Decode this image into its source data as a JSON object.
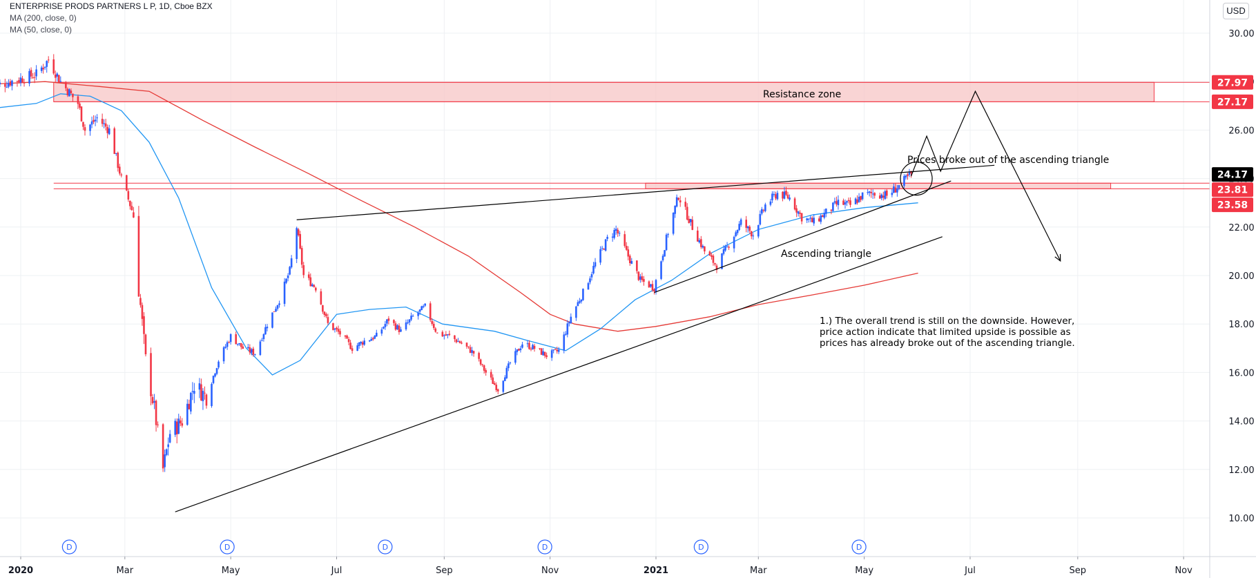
{
  "header": {
    "title": "ENTERPRISE PRODS PARTNERS L P, 1D, Cboe BZX",
    "ma200": "MA (200, close, 0)",
    "ma50": "MA (50, close, 0)"
  },
  "currency_button": "USD",
  "annotations": {
    "resistance_zone": "Resistance zone",
    "breakout": "Prices broke out of the ascending triangle",
    "ascending_triangle": "Ascending triangle",
    "note_lines": [
      "1.) The overall trend is still on the downside. However,",
      "price action indicate that limited upside is possible as",
      "prices has already broke out of the ascending triangle."
    ]
  },
  "price_badges": [
    {
      "label": "27.97",
      "value": 27.97,
      "color": "#f23645"
    },
    {
      "label": "27.17",
      "value": 27.17,
      "color": "#f23645"
    },
    {
      "label": "24.17",
      "value": 24.17,
      "color": "#000000"
    },
    {
      "label": "23.81",
      "value": 23.81,
      "color": "#f23645"
    },
    {
      "label": "23.58",
      "value": 23.58,
      "color": "#f23645"
    }
  ],
  "dividend_markers": [
    {
      "label": "D",
      "date": "2020-01-29"
    },
    {
      "label": "D",
      "date": "2020-04-29"
    },
    {
      "label": "D",
      "date": "2020-07-29"
    },
    {
      "label": "D",
      "date": "2020-10-29"
    },
    {
      "label": "D",
      "date": "2021-01-27"
    },
    {
      "label": "D",
      "date": "2021-04-28"
    }
  ],
  "colors": {
    "up": "#2962ff",
    "down": "#f23645",
    "ma200": "#e53935",
    "ma50": "#2196f3",
    "zone_fill": "#f7c5c5",
    "zone_border": "#f23645",
    "grid": "#eef0f3"
  },
  "chart_data": {
    "type": "candlestick",
    "symbol": "ENTERPRISE PRODS PARTNERS L P",
    "interval": "1D",
    "exchange": "Cboe BZX",
    "y_axis": {
      "ticks": [
        10,
        12,
        14,
        16,
        18,
        20,
        22,
        24,
        26,
        28,
        30
      ],
      "tick_labels": [
        "10.00",
        "12.00",
        "14.00",
        "16.00",
        "18.00",
        "20.00",
        "22.00",
        "24.00",
        "26.00",
        "28.00",
        "30.00"
      ],
      "range": [
        8.7,
        31.3
      ],
      "position": "right"
    },
    "x_axis": {
      "ticks": [
        {
          "label": "2020",
          "date": "2020-01-01",
          "bold": true
        },
        {
          "label": "Mar",
          "date": "2020-03-01"
        },
        {
          "label": "May",
          "date": "2020-05-01"
        },
        {
          "label": "Jul",
          "date": "2020-07-01"
        },
        {
          "label": "Sep",
          "date": "2020-09-01"
        },
        {
          "label": "Nov",
          "date": "2020-11-01"
        },
        {
          "label": "2021",
          "date": "2021-01-01",
          "bold": true
        },
        {
          "label": "Mar",
          "date": "2021-03-01"
        },
        {
          "label": "May",
          "date": "2021-05-01"
        },
        {
          "label": "Jul",
          "date": "2021-07-01"
        },
        {
          "label": "Sep",
          "date": "2021-09-01"
        },
        {
          "label": "Nov",
          "date": "2021-11-01"
        }
      ],
      "range": [
        "2019-12-15",
        "2021-11-30"
      ]
    },
    "price_path": [
      {
        "date": "2019-12-16",
        "close": 27.8
      },
      {
        "date": "2019-12-31",
        "close": 28.1
      },
      {
        "date": "2020-01-10",
        "close": 28.3
      },
      {
        "date": "2020-01-17",
        "close": 28.9
      },
      {
        "date": "2020-01-24",
        "close": 28.0
      },
      {
        "date": "2020-02-03",
        "close": 27.1
      },
      {
        "date": "2020-02-07",
        "close": 26.0
      },
      {
        "date": "2020-02-14",
        "close": 26.5
      },
      {
        "date": "2020-02-21",
        "close": 26.0
      },
      {
        "date": "2020-02-28",
        "close": 24.0
      },
      {
        "date": "2020-03-06",
        "close": 22.5
      },
      {
        "date": "2020-03-09",
        "close": 19.5
      },
      {
        "date": "2020-03-13",
        "close": 16.5
      },
      {
        "date": "2020-03-18",
        "close": 14.5
      },
      {
        "date": "2020-03-23",
        "close": 12.0
      },
      {
        "date": "2020-03-27",
        "close": 13.5
      },
      {
        "date": "2020-04-03",
        "close": 14.0
      },
      {
        "date": "2020-04-10",
        "close": 15.5
      },
      {
        "date": "2020-04-17",
        "close": 15.0
      },
      {
        "date": "2020-04-24",
        "close": 16.5
      },
      {
        "date": "2020-05-01",
        "close": 17.5
      },
      {
        "date": "2020-05-08",
        "close": 17.0
      },
      {
        "date": "2020-05-15",
        "close": 16.8
      },
      {
        "date": "2020-05-22",
        "close": 18.0
      },
      {
        "date": "2020-05-29",
        "close": 19.0
      },
      {
        "date": "2020-06-04",
        "close": 20.2
      },
      {
        "date": "2020-06-08",
        "close": 22.0
      },
      {
        "date": "2020-06-12",
        "close": 20.0
      },
      {
        "date": "2020-06-19",
        "close": 19.5
      },
      {
        "date": "2020-06-26",
        "close": 18.0
      },
      {
        "date": "2020-07-03",
        "close": 17.6
      },
      {
        "date": "2020-07-10",
        "close": 17.0
      },
      {
        "date": "2020-07-17",
        "close": 17.3
      },
      {
        "date": "2020-07-24",
        "close": 17.5
      },
      {
        "date": "2020-07-31",
        "close": 18.2
      },
      {
        "date": "2020-08-07",
        "close": 17.7
      },
      {
        "date": "2020-08-14",
        "close": 18.3
      },
      {
        "date": "2020-08-21",
        "close": 18.7
      },
      {
        "date": "2020-08-28",
        "close": 17.6
      },
      {
        "date": "2020-09-04",
        "close": 17.5
      },
      {
        "date": "2020-09-11",
        "close": 17.2
      },
      {
        "date": "2020-09-18",
        "close": 16.8
      },
      {
        "date": "2020-09-25",
        "close": 16.0
      },
      {
        "date": "2020-10-02",
        "close": 15.3
      },
      {
        "date": "2020-10-09",
        "close": 16.4
      },
      {
        "date": "2020-10-16",
        "close": 17.2
      },
      {
        "date": "2020-10-23",
        "close": 17.0
      },
      {
        "date": "2020-10-30",
        "close": 16.7
      },
      {
        "date": "2020-11-06",
        "close": 16.9
      },
      {
        "date": "2020-11-13",
        "close": 18.3
      },
      {
        "date": "2020-11-20",
        "close": 19.3
      },
      {
        "date": "2020-11-27",
        "close": 20.5
      },
      {
        "date": "2020-12-04",
        "close": 21.5
      },
      {
        "date": "2020-12-09",
        "close": 21.9
      },
      {
        "date": "2020-12-16",
        "close": 20.8
      },
      {
        "date": "2020-12-23",
        "close": 19.8
      },
      {
        "date": "2020-12-31",
        "close": 19.5
      },
      {
        "date": "2021-01-08",
        "close": 21.8
      },
      {
        "date": "2021-01-14",
        "close": 23.3
      },
      {
        "date": "2021-01-22",
        "close": 22.0
      },
      {
        "date": "2021-01-29",
        "close": 21.0
      },
      {
        "date": "2021-02-05",
        "close": 20.4
      },
      {
        "date": "2021-02-12",
        "close": 21.3
      },
      {
        "date": "2021-02-19",
        "close": 22.2
      },
      {
        "date": "2021-02-26",
        "close": 21.7
      },
      {
        "date": "2021-03-05",
        "close": 22.9
      },
      {
        "date": "2021-03-12",
        "close": 23.4
      },
      {
        "date": "2021-03-19",
        "close": 23.2
      },
      {
        "date": "2021-03-26",
        "close": 22.4
      },
      {
        "date": "2021-04-02",
        "close": 22.2
      },
      {
        "date": "2021-04-09",
        "close": 22.6
      },
      {
        "date": "2021-04-16",
        "close": 23.0
      },
      {
        "date": "2021-04-23",
        "close": 22.9
      },
      {
        "date": "2021-04-30",
        "close": 23.3
      },
      {
        "date": "2021-05-07",
        "close": 23.4
      },
      {
        "date": "2021-05-14",
        "close": 23.3
      },
      {
        "date": "2021-05-21",
        "close": 23.7
      },
      {
        "date": "2021-05-28",
        "close": 24.17
      }
    ],
    "ma200_path": [
      {
        "date": "2019-12-16",
        "value": 27.9
      },
      {
        "date": "2020-01-15",
        "value": 28.0
      },
      {
        "date": "2020-02-15",
        "value": 27.8
      },
      {
        "date": "2020-03-15",
        "value": 27.6
      },
      {
        "date": "2020-04-15",
        "value": 26.4
      },
      {
        "date": "2020-05-15",
        "value": 25.3
      },
      {
        "date": "2020-06-15",
        "value": 24.2
      },
      {
        "date": "2020-07-15",
        "value": 23.1
      },
      {
        "date": "2020-08-15",
        "value": 22.0
      },
      {
        "date": "2020-09-15",
        "value": 20.8
      },
      {
        "date": "2020-10-15",
        "value": 19.3
      },
      {
        "date": "2020-11-01",
        "value": 18.4
      },
      {
        "date": "2020-11-15",
        "value": 18.0
      },
      {
        "date": "2020-12-10",
        "value": 17.7
      },
      {
        "date": "2021-01-01",
        "value": 17.9
      },
      {
        "date": "2021-02-01",
        "value": 18.3
      },
      {
        "date": "2021-03-01",
        "value": 18.8
      },
      {
        "date": "2021-04-01",
        "value": 19.2
      },
      {
        "date": "2021-05-01",
        "value": 19.6
      },
      {
        "date": "2021-06-01",
        "value": 20.1
      }
    ],
    "ma50_path": [
      {
        "date": "2019-12-16",
        "value": 26.9
      },
      {
        "date": "2020-01-10",
        "value": 27.1
      },
      {
        "date": "2020-01-24",
        "value": 27.5
      },
      {
        "date": "2020-02-10",
        "value": 27.4
      },
      {
        "date": "2020-02-28",
        "value": 26.8
      },
      {
        "date": "2020-03-15",
        "value": 25.5
      },
      {
        "date": "2020-04-01",
        "value": 23.2
      },
      {
        "date": "2020-04-20",
        "value": 19.5
      },
      {
        "date": "2020-05-10",
        "value": 17.0
      },
      {
        "date": "2020-05-25",
        "value": 15.9
      },
      {
        "date": "2020-06-10",
        "value": 16.5
      },
      {
        "date": "2020-07-01",
        "value": 18.4
      },
      {
        "date": "2020-07-20",
        "value": 18.6
      },
      {
        "date": "2020-08-10",
        "value": 18.7
      },
      {
        "date": "2020-08-31",
        "value": 18.0
      },
      {
        "date": "2020-09-30",
        "value": 17.7
      },
      {
        "date": "2020-10-20",
        "value": 17.3
      },
      {
        "date": "2020-11-10",
        "value": 16.9
      },
      {
        "date": "2020-11-30",
        "value": 17.8
      },
      {
        "date": "2020-12-20",
        "value": 19.0
      },
      {
        "date": "2021-01-10",
        "value": 19.8
      },
      {
        "date": "2021-02-01",
        "value": 20.9
      },
      {
        "date": "2021-03-01",
        "value": 21.9
      },
      {
        "date": "2021-04-01",
        "value": 22.5
      },
      {
        "date": "2021-05-01",
        "value": 22.8
      },
      {
        "date": "2021-06-01",
        "value": 23.0
      }
    ],
    "resistance_zone": {
      "top": 27.97,
      "bottom": 27.17,
      "from": "2020-01-20",
      "to": "2021-10-15",
      "label": "Resistance zone"
    },
    "breakout_zone": {
      "top": 23.81,
      "bottom": 23.58,
      "from": "2020-12-26",
      "to": "2021-09-20"
    },
    "trendlines": [
      {
        "name": "triangle-top",
        "from": {
          "date": "2020-06-08",
          "value": 22.3
        },
        "to": {
          "date": "2021-07-15",
          "value": 24.55
        }
      },
      {
        "name": "triangle-bottom",
        "from": {
          "date": "2020-12-31",
          "value": 19.3
        },
        "to": {
          "date": "2021-06-20",
          "value": 23.9
        }
      },
      {
        "name": "long-support",
        "from": {
          "date": "2020-03-30",
          "value": 10.25
        },
        "to": {
          "date": "2021-06-15",
          "value": 21.6
        }
      }
    ],
    "projection_path": [
      {
        "date": "2021-05-28",
        "value": 24.1
      },
      {
        "date": "2021-06-06",
        "value": 25.75
      },
      {
        "date": "2021-06-14",
        "value": 24.3
      },
      {
        "date": "2021-07-04",
        "value": 27.6
      },
      {
        "date": "2021-08-22",
        "value": 20.6
      }
    ],
    "breakout_circle": {
      "date": "2021-05-31",
      "value": 24.0
    },
    "last_price": 24.17
  }
}
